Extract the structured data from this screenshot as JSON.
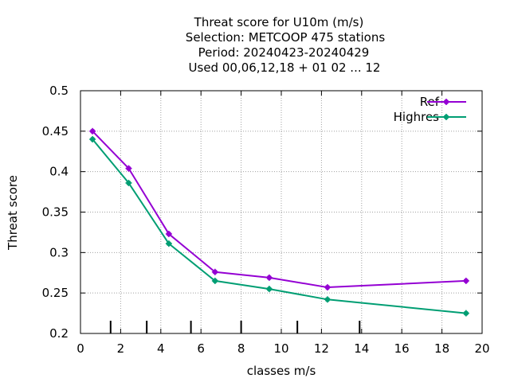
{
  "chart_data": {
    "type": "line",
    "title_lines": [
      "Threat score  for U10m (m/s)",
      "Selection: METCOOP    475 stations",
      "Period: 20240423-20240429",
      "Used  00,06,12,18 + 01 02 ... 12"
    ],
    "xlabel": "classes m/s",
    "ylabel": "Threat score",
    "xlim": [
      0,
      20
    ],
    "ylim": [
      0.2,
      0.5
    ],
    "xticks": [
      "0",
      "2",
      "4",
      "6",
      "8",
      "10",
      "12",
      "14",
      "16",
      "18",
      "20"
    ],
    "yticks": [
      "0.2",
      "0.25",
      "0.3",
      "0.35",
      "0.4",
      "0.45",
      "0.5"
    ],
    "grid": true,
    "legend_position": "top-right",
    "class_limits": [
      1.5,
      3.3,
      5.5,
      8.0,
      10.8,
      13.9
    ],
    "series": [
      {
        "name": "Ref",
        "color": "#9400d3",
        "x": [
          0.6,
          2.4,
          4.4,
          6.7,
          9.4,
          12.3,
          19.2
        ],
        "y": [
          0.45,
          0.404,
          0.323,
          0.276,
          0.269,
          0.257,
          0.265
        ]
      },
      {
        "name": "Highres",
        "color": "#009e73",
        "x": [
          0.6,
          2.4,
          4.4,
          6.7,
          9.4,
          12.3,
          19.2
        ],
        "y": [
          0.44,
          0.386,
          0.311,
          0.265,
          0.255,
          0.242,
          0.225
        ]
      }
    ]
  }
}
